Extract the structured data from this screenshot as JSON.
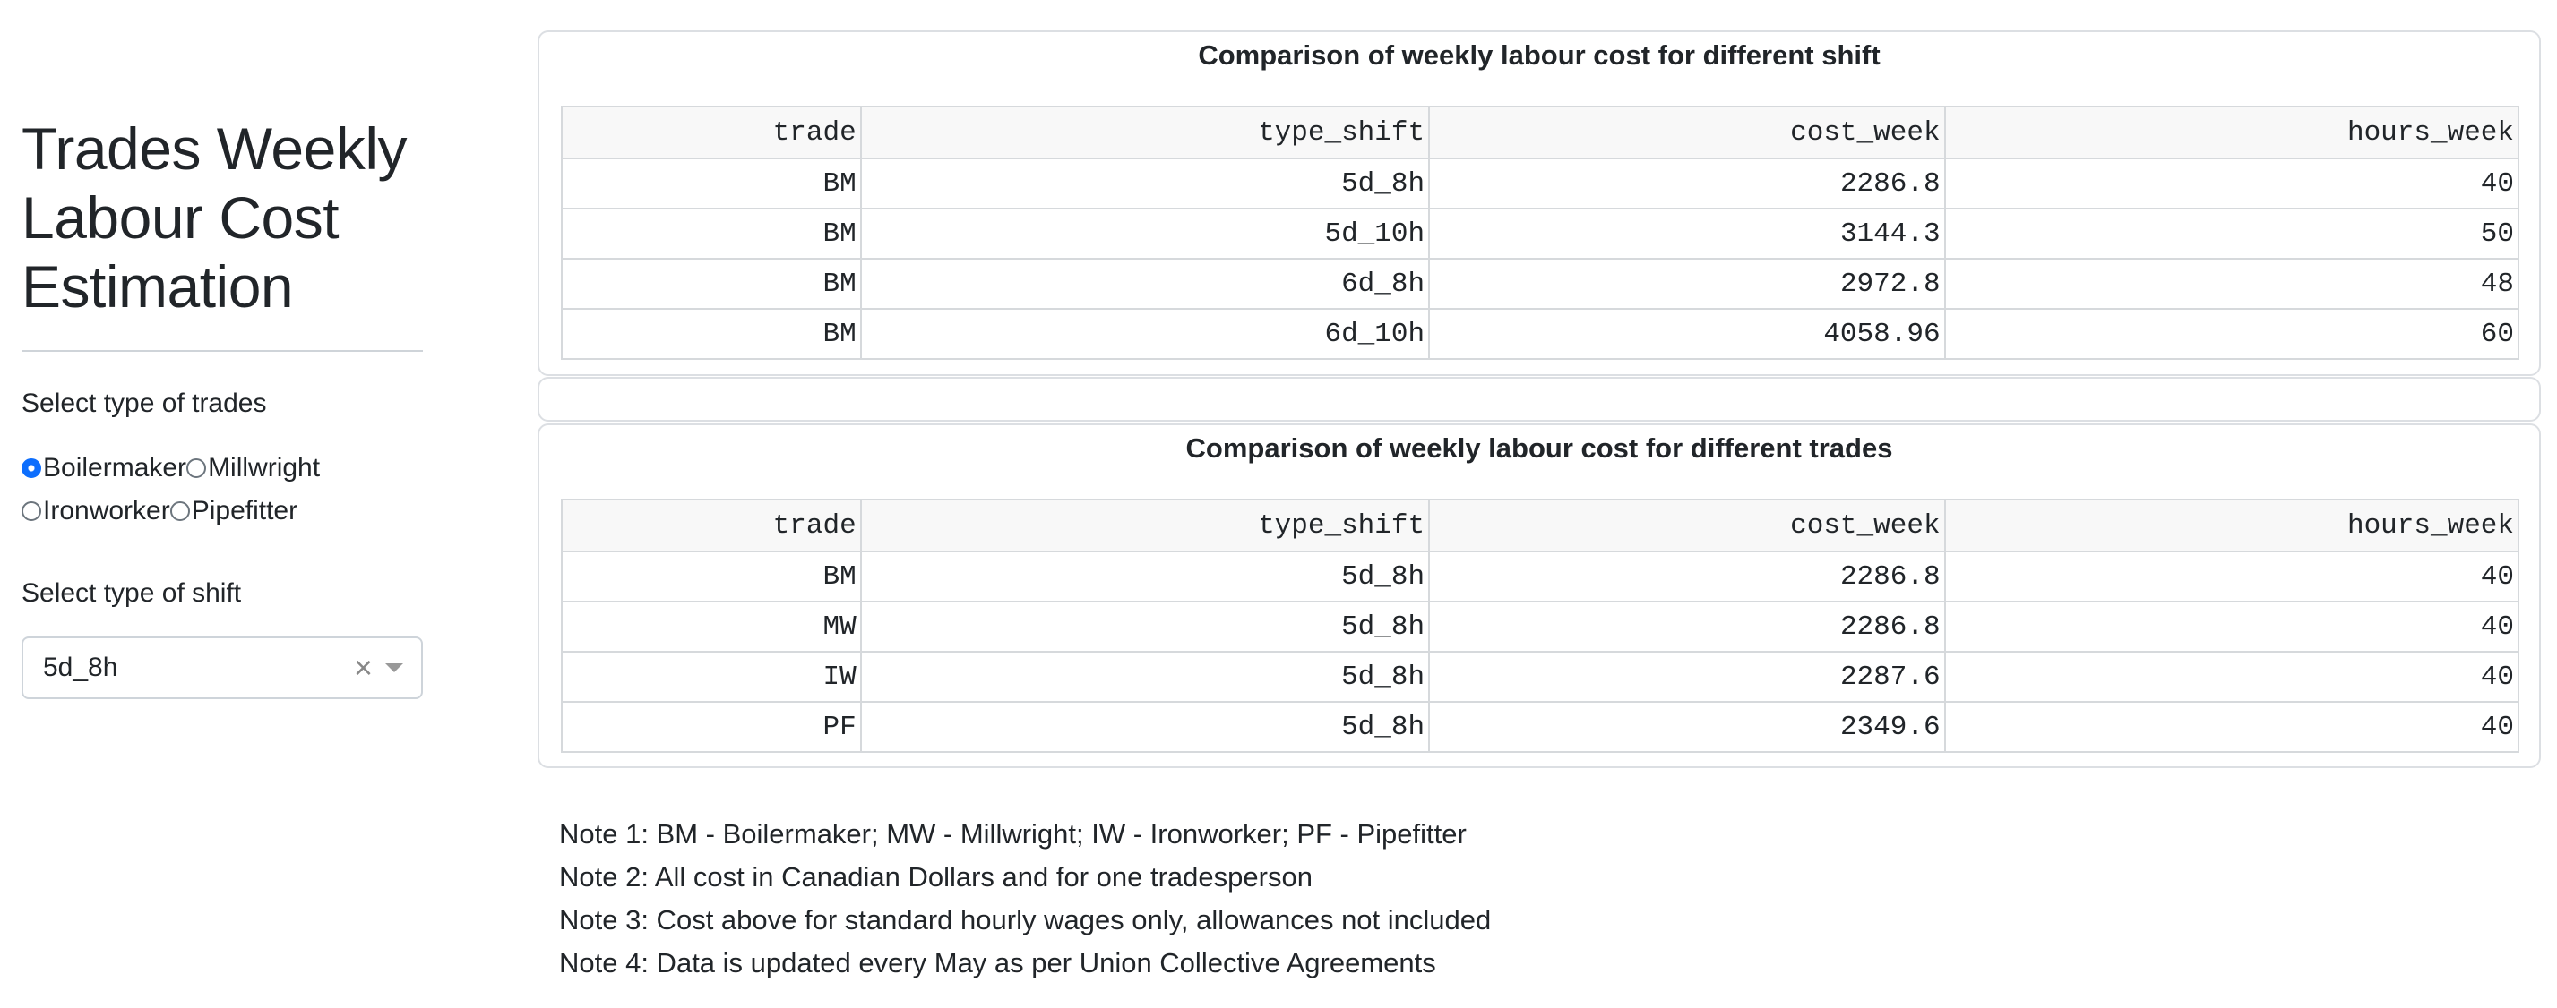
{
  "sidebar": {
    "title_lines": [
      "Trades Weekly",
      "Labour Cost",
      "Estimation"
    ],
    "trades_label": "Select type of trades",
    "trades_options": [
      "Boilermaker",
      "Millwright",
      "Ironworker",
      "Pipefitter"
    ],
    "trades_selected": "Boilermaker",
    "shift_label": "Select type of shift",
    "shift_value": "5d_8h",
    "clear_glyph": "×"
  },
  "table_shift": {
    "title": "Comparison of weekly labour cost for different shift",
    "columns": [
      "trade",
      "type_shift",
      "cost_week",
      "hours_week"
    ],
    "rows": [
      [
        "BM",
        "5d_8h",
        "2286.8",
        "40"
      ],
      [
        "BM",
        "5d_10h",
        "3144.3",
        "50"
      ],
      [
        "BM",
        "6d_8h",
        "2972.8",
        "48"
      ],
      [
        "BM",
        "6d_10h",
        "4058.96",
        "60"
      ]
    ]
  },
  "table_trades": {
    "title": "Comparison of weekly labour cost for different trades",
    "columns": [
      "trade",
      "type_shift",
      "cost_week",
      "hours_week"
    ],
    "rows": [
      [
        "BM",
        "5d_8h",
        "2286.8",
        "40"
      ],
      [
        "MW",
        "5d_8h",
        "2286.8",
        "40"
      ],
      [
        "IW",
        "5d_8h",
        "2287.6",
        "40"
      ],
      [
        "PF",
        "5d_8h",
        "2349.6",
        "40"
      ]
    ]
  },
  "notes": [
    "Note 1: BM - Boilermaker; MW - Millwright; IW - Ironworker; PF - Pipefitter",
    "Note 2: All cost in Canadian Dollars and for one tradesperson",
    "Note 3: Cost above for standard hourly wages only, allowances not included",
    "Note 4: Data is updated every May as per Union Collective Agreements"
  ],
  "colors": {
    "accent": "#0d6efd",
    "border": "#d6d9dc",
    "header_bg": "#f8f8f8",
    "text": "#212529"
  }
}
